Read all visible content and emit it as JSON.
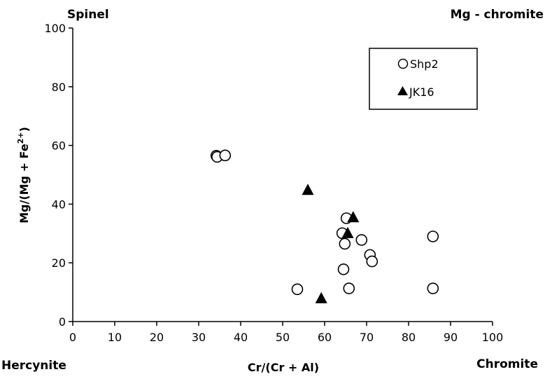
{
  "corners": {
    "top_left": "Spinel",
    "top_right": "Mg - chromite",
    "bottom_left": "Hercynite",
    "bottom_right": "Chromite"
  },
  "chart_data": {
    "type": "scatter",
    "xlabel": "Cr/(Cr + Al)",
    "ylabel": "Mg/(Mg + Fe",
    "ylabel_sup": "2+",
    "ylabel_tail": ")",
    "xlim": [
      0,
      100
    ],
    "ylim": [
      0,
      100
    ],
    "x_ticks": [
      0,
      10,
      20,
      30,
      40,
      50,
      60,
      70,
      80,
      90,
      100
    ],
    "y_ticks": [
      0,
      20,
      40,
      60,
      80,
      100
    ],
    "grid": false,
    "legend_position": "top-right",
    "series": [
      {
        "name": "Shp2",
        "marker": "open-circle",
        "color": "#000000",
        "points": [
          {
            "x": 34.2,
            "y": 56.5
          },
          {
            "x": 34.4,
            "y": 56.1
          },
          {
            "x": 36.3,
            "y": 56.6
          },
          {
            "x": 53.5,
            "y": 11.0
          },
          {
            "x": 64.2,
            "y": 30.1
          },
          {
            "x": 64.5,
            "y": 17.8
          },
          {
            "x": 64.8,
            "y": 26.5
          },
          {
            "x": 65.2,
            "y": 35.2
          },
          {
            "x": 65.8,
            "y": 11.3
          },
          {
            "x": 68.8,
            "y": 27.8
          },
          {
            "x": 70.8,
            "y": 22.7
          },
          {
            "x": 71.3,
            "y": 20.5
          },
          {
            "x": 85.8,
            "y": 29.0
          },
          {
            "x": 85.8,
            "y": 11.3
          }
        ]
      },
      {
        "name": "JK16",
        "marker": "filled-triangle",
        "color": "#000000",
        "points": [
          {
            "x": 56.0,
            "y": 44.8
          },
          {
            "x": 59.2,
            "y": 7.9
          },
          {
            "x": 65.5,
            "y": 30.1
          },
          {
            "x": 66.8,
            "y": 35.5
          }
        ]
      }
    ]
  }
}
